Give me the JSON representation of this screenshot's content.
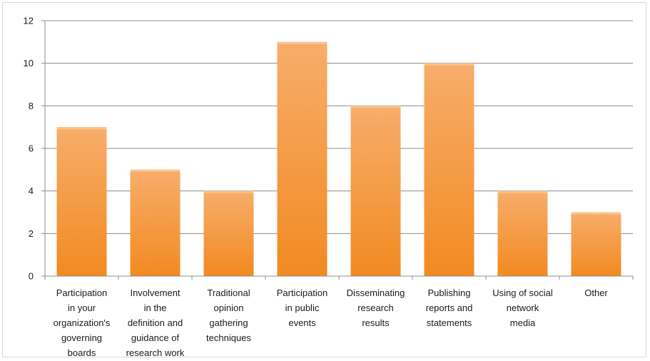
{
  "chart_data": {
    "type": "bar",
    "categories": [
      [
        "Participation",
        "in your",
        "organization's",
        "governing",
        "boards"
      ],
      [
        "Involvement",
        "in the",
        "definition and",
        "guidance of",
        "research work"
      ],
      [
        "Traditional",
        "opinion",
        "gathering",
        "techniques"
      ],
      [
        "Participation",
        "in public",
        "events"
      ],
      [
        "Disseminating",
        "research",
        "results"
      ],
      [
        "Publishing",
        "reports and",
        "statements"
      ],
      [
        "Using of social",
        "network",
        "media"
      ],
      [
        "Other"
      ]
    ],
    "values": [
      7,
      5,
      4,
      11,
      8,
      10,
      4,
      3
    ],
    "ylim": [
      0,
      12
    ],
    "yticks": [
      "0",
      "2",
      "4",
      "6",
      "8",
      "10",
      "12"
    ],
    "grid": true,
    "legend": "none",
    "colors": {
      "bar_top": "#f7ad6a",
      "bar_bottom": "#f28a22",
      "grid": "#8c8c8c",
      "axis": "#8c8c8c"
    }
  }
}
